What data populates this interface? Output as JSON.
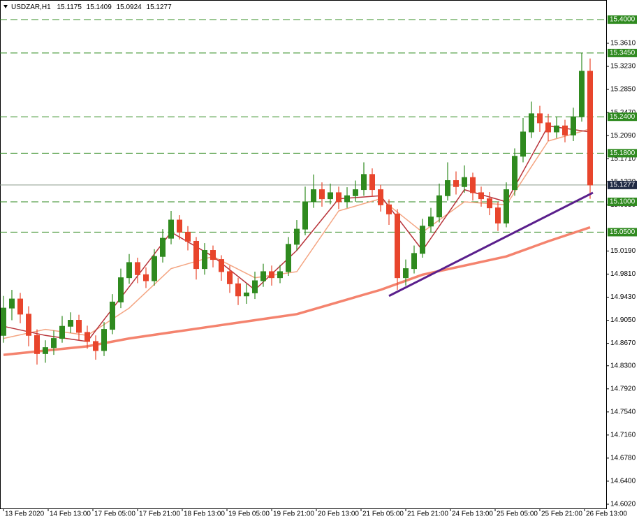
{
  "chart_data": {
    "type": "candlestick",
    "symbol": "USDZAR,H1",
    "header_ohlc": [
      15.1175,
      15.1409,
      15.0924,
      15.1277
    ],
    "xlim": [
      -1.25,
      215.75
    ],
    "ylim": [
      14.5951,
      15.4323
    ],
    "xticks": [
      {
        "value": 0,
        "label": "13 Feb 2020"
      },
      {
        "value": 16,
        "label": "14 Feb 13:00"
      },
      {
        "value": 32,
        "label": "17 Feb 05:00"
      },
      {
        "value": 48,
        "label": "17 Feb 21:00"
      },
      {
        "value": 64,
        "label": "18 Feb 13:00"
      },
      {
        "value": 80,
        "label": "19 Feb 05:00"
      },
      {
        "value": 96,
        "label": "19 Feb 21:00"
      },
      {
        "value": 112,
        "label": "20 Feb 13:00"
      },
      {
        "value": 128,
        "label": "21 Feb 05:00"
      },
      {
        "value": 144,
        "label": "21 Feb 21:00"
      },
      {
        "value": 160,
        "label": "24 Feb 13:00"
      },
      {
        "value": 176,
        "label": "25 Feb 05:00"
      },
      {
        "value": 192,
        "label": "25 Feb 21:00"
      },
      {
        "value": 208,
        "label": "26 Feb 13:00"
      }
    ],
    "yticks": [
      {
        "value": 14.602,
        "label": "14.6020"
      },
      {
        "value": 14.64,
        "label": "14.6400"
      },
      {
        "value": 14.678,
        "label": "14.6780"
      },
      {
        "value": 14.716,
        "label": "14.7160"
      },
      {
        "value": 14.754,
        "label": "14.7540"
      },
      {
        "value": 14.792,
        "label": "14.7920"
      },
      {
        "value": 14.83,
        "label": "14.8300"
      },
      {
        "value": 14.867,
        "label": "14.8670"
      },
      {
        "value": 14.905,
        "label": "14.9050"
      },
      {
        "value": 14.943,
        "label": "14.9430"
      },
      {
        "value": 14.981,
        "label": "14.9810"
      },
      {
        "value": 15.019,
        "label": "15.0190"
      },
      {
        "value": 15.095,
        "label": "15.0950"
      },
      {
        "value": 15.133,
        "label": "15.1330"
      },
      {
        "value": 15.171,
        "label": "15.1710"
      },
      {
        "value": 15.209,
        "label": "15.2090"
      },
      {
        "value": 15.247,
        "label": "15.2470"
      },
      {
        "value": 15.285,
        "label": "15.2850"
      },
      {
        "value": 15.323,
        "label": "15.3230"
      },
      {
        "value": 15.361,
        "label": "15.3610"
      }
    ],
    "up_color": "#2f8a1f",
    "down_color": "#e8452c",
    "x": [
      0,
      3,
      6,
      9,
      12,
      15,
      18,
      21,
      24,
      27,
      30,
      33,
      36,
      39,
      42,
      45,
      48,
      51,
      54,
      57,
      60,
      63,
      66,
      69,
      72,
      75,
      78,
      81,
      84,
      87,
      90,
      93,
      96,
      99,
      102,
      105,
      108,
      111,
      114,
      117,
      120,
      123,
      126,
      129,
      132,
      135,
      138,
      141,
      144,
      147,
      150,
      153,
      156,
      159,
      162,
      165,
      168,
      171,
      174,
      177,
      180,
      183,
      186,
      189,
      192,
      195,
      198,
      201,
      204,
      207,
      210
    ],
    "candles": [
      [
        14.88,
        14.945,
        14.868,
        14.925
      ],
      [
        14.925,
        14.955,
        14.905,
        14.94
      ],
      [
        14.94,
        14.95,
        14.9,
        14.915
      ],
      [
        14.915,
        14.928,
        14.862,
        14.88
      ],
      [
        14.88,
        14.89,
        14.832,
        14.85
      ],
      [
        14.85,
        14.872,
        14.835,
        14.86
      ],
      [
        14.86,
        14.888,
        14.848,
        14.875
      ],
      [
        14.875,
        14.912,
        14.868,
        14.895
      ],
      [
        14.895,
        14.918,
        14.884,
        14.905
      ],
      [
        14.905,
        14.914,
        14.872,
        14.885
      ],
      [
        14.885,
        14.896,
        14.858,
        14.87
      ],
      [
        14.87,
        14.88,
        14.84,
        14.855
      ],
      [
        14.855,
        14.902,
        14.846,
        14.89
      ],
      [
        14.89,
        14.948,
        14.882,
        14.935
      ],
      [
        14.935,
        14.99,
        14.925,
        14.975
      ],
      [
        14.975,
        15.014,
        14.965,
        15.0
      ],
      [
        15.0,
        15.008,
        14.966,
        14.98
      ],
      [
        14.98,
        14.992,
        14.958,
        14.97
      ],
      [
        14.97,
        15.022,
        14.962,
        15.01
      ],
      [
        15.01,
        15.055,
        15.0,
        15.04
      ],
      [
        15.04,
        15.085,
        15.03,
        15.07
      ],
      [
        15.07,
        15.078,
        15.038,
        15.05
      ],
      [
        15.05,
        15.06,
        15.02,
        15.035
      ],
      [
        15.035,
        15.042,
        14.972,
        14.99
      ],
      [
        14.99,
        15.032,
        14.98,
        15.02
      ],
      [
        15.02,
        15.028,
        14.992,
        15.005
      ],
      [
        15.005,
        15.012,
        14.97,
        14.985
      ],
      [
        14.985,
        14.995,
        14.95,
        14.965
      ],
      [
        14.965,
        14.975,
        14.93,
        14.945
      ],
      [
        14.945,
        14.965,
        14.932,
        14.95
      ],
      [
        14.95,
        14.985,
        14.94,
        14.97
      ],
      [
        14.97,
        14.998,
        14.96,
        14.985
      ],
      [
        14.985,
        14.995,
        14.962,
        14.975
      ],
      [
        14.975,
        14.996,
        14.966,
        14.985
      ],
      [
        14.985,
        15.042,
        14.978,
        15.03
      ],
      [
        15.03,
        15.07,
        15.02,
        15.055
      ],
      [
        15.055,
        15.125,
        15.045,
        15.1
      ],
      [
        15.1,
        15.145,
        15.09,
        15.12
      ],
      [
        15.12,
        15.132,
        15.092,
        15.105
      ],
      [
        15.105,
        15.13,
        15.096,
        15.115
      ],
      [
        15.115,
        15.125,
        15.088,
        15.1
      ],
      [
        15.1,
        15.124,
        15.09,
        15.11
      ],
      [
        15.11,
        15.135,
        15.1,
        15.12
      ],
      [
        15.12,
        15.165,
        15.11,
        15.145
      ],
      [
        15.145,
        15.155,
        15.108,
        15.12
      ],
      [
        15.12,
        15.128,
        15.084,
        15.095
      ],
      [
        15.095,
        15.104,
        15.062,
        15.08
      ],
      [
        15.08,
        15.088,
        14.955,
        14.975
      ],
      [
        14.975,
        15.005,
        14.962,
        14.99
      ],
      [
        14.99,
        15.028,
        14.982,
        15.015
      ],
      [
        15.015,
        15.072,
        15.008,
        15.06
      ],
      [
        15.06,
        15.09,
        15.05,
        15.075
      ],
      [
        15.075,
        15.13,
        15.066,
        15.11
      ],
      [
        15.11,
        15.165,
        15.102,
        15.135
      ],
      [
        15.135,
        15.15,
        15.112,
        15.125
      ],
      [
        15.125,
        15.16,
        15.115,
        15.14
      ],
      [
        15.14,
        15.148,
        15.102,
        15.115
      ],
      [
        15.115,
        15.125,
        15.092,
        15.105
      ],
      [
        15.105,
        15.116,
        15.078,
        15.09
      ],
      [
        15.09,
        15.1,
        15.052,
        15.065
      ],
      [
        15.065,
        15.132,
        15.058,
        15.12
      ],
      [
        15.12,
        15.188,
        15.11,
        15.175
      ],
      [
        15.175,
        15.238,
        15.165,
        15.215
      ],
      [
        15.215,
        15.265,
        15.205,
        15.245
      ],
      [
        15.245,
        15.258,
        15.215,
        15.23
      ],
      [
        15.23,
        15.245,
        15.2,
        15.215
      ],
      [
        15.215,
        15.24,
        15.205,
        15.225
      ],
      [
        15.225,
        15.235,
        15.198,
        15.21
      ],
      [
        15.21,
        15.255,
        15.2,
        15.24
      ],
      [
        15.24,
        15.345,
        15.232,
        15.315
      ],
      [
        15.315,
        15.336,
        15.105,
        15.1277
      ]
    ],
    "ma_x": [
      0,
      15,
      30,
      45,
      60,
      75,
      90,
      105,
      120,
      135,
      150,
      165,
      180,
      195,
      210
    ],
    "ma": [
      {
        "color": "#f4836e",
        "width": 3.5,
        "values": [
          14.848,
          14.855,
          14.862,
          14.875,
          14.885,
          14.895,
          14.905,
          14.915,
          14.935,
          14.955,
          14.98,
          14.995,
          15.01,
          15.035,
          15.058
        ]
      },
      {
        "color": "#f4a582",
        "width": 1.5,
        "values": [
          14.875,
          14.89,
          14.88,
          14.925,
          14.99,
          15.01,
          14.975,
          14.985,
          15.085,
          15.105,
          15.05,
          15.1,
          15.095,
          15.2,
          15.22
        ]
      },
      {
        "color": "#b8333a",
        "width": 1.5,
        "values": [
          14.895,
          14.88,
          14.87,
          14.96,
          15.05,
          15.01,
          14.955,
          15.02,
          15.105,
          15.11,
          15.02,
          15.12,
          15.1,
          15.225,
          15.215
        ]
      }
    ],
    "trendline": {
      "x": [
        138,
        211
      ],
      "values": [
        14.945,
        15.115
      ],
      "color": "#5a1f8c"
    },
    "levels": [
      {
        "value": 15.4,
        "label": "15.4000"
      },
      {
        "value": 15.345,
        "label": "15.3450"
      },
      {
        "value": 15.24,
        "label": "15.2400"
      },
      {
        "value": 15.18,
        "label": "15.1800"
      },
      {
        "value": 15.1,
        "label": "15.1000"
      },
      {
        "value": 15.05,
        "label": "15.0500"
      }
    ],
    "level_color": "#2f8a1f",
    "current_price": 15.1277
  }
}
